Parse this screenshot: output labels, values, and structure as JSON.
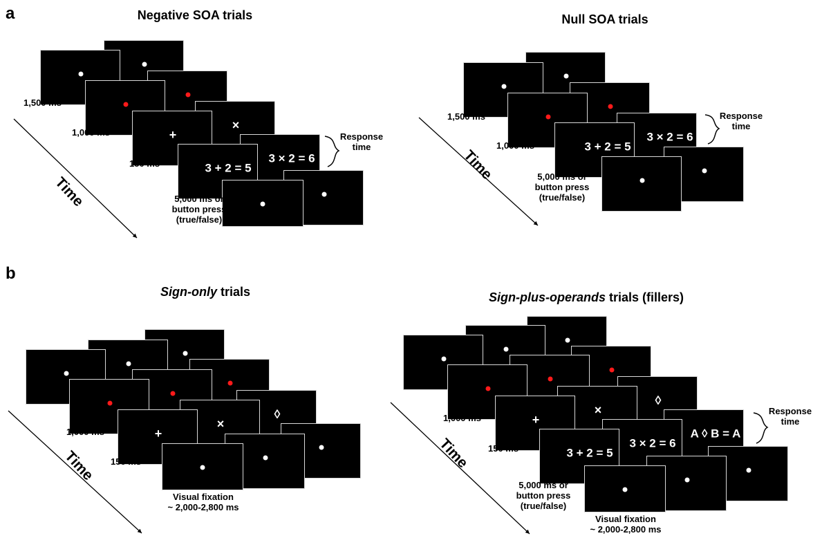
{
  "panel_a": {
    "letter": "a",
    "left_title": "Negative SOA trials",
    "right_title": "Null SOA trials",
    "dur_1500": "1,500 ms",
    "dur_1000": "1,000 ms",
    "dur_150": "150 ms",
    "dur_5000": [
      "5,000 ms or",
      "button press",
      "(true/false)"
    ],
    "response": [
      "Response",
      "time"
    ],
    "time": "Time",
    "eq_add": "3 + 2 = 5",
    "eq_mul": "3 × 2 = 6",
    "plus": "+",
    "times": "×"
  },
  "panel_b": {
    "letter": "b",
    "left_title_italic": "Sign-only",
    "left_title_rest": " trials",
    "right_title_italic": "Sign-plus-operands",
    "right_title_rest": " trials (fillers)",
    "dur_1000": "1,000 ms",
    "dur_150": "150 ms",
    "dur_5000": [
      "5,000 ms or",
      "button press",
      "(true/false)"
    ],
    "fixation": [
      "Visual fixation",
      "~ 2,000-2,800 ms"
    ],
    "response": [
      "Response",
      "time"
    ],
    "time": "Time",
    "eq_add": "3 + 2 = 5",
    "eq_mul": "3 × 2 = 6",
    "eq_sign": "A ◊ B = A",
    "plus": "+",
    "times": "×",
    "diamond": "◊"
  },
  "colors": {
    "screen": "#000000",
    "fixation_dot": "#ffffff",
    "cue_dot": "#ff1a1a",
    "border": "#d9d9d9"
  }
}
